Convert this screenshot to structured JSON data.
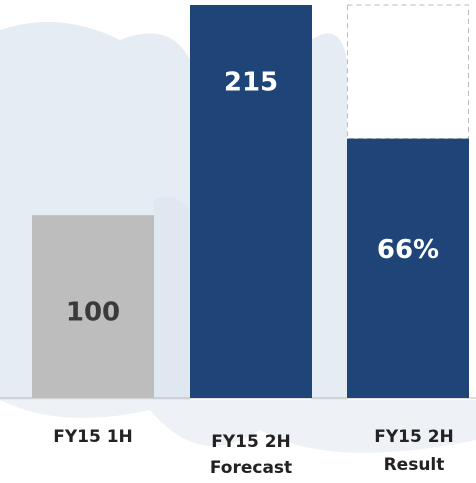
{
  "chart_data": {
    "type": "bar",
    "categories": [
      [
        "FY15 1H"
      ],
      [
        "FY15 2H",
        "Forecast"
      ],
      [
        "FY15 2H",
        "Result"
      ]
    ],
    "values": [
      100,
      215,
      66
    ],
    "value_labels": [
      "100",
      "215",
      "66%"
    ],
    "colors": [
      "#bdbdbd",
      "#1f4478",
      "#1f4478"
    ],
    "label_colors": [
      "#3a3a3a",
      "#ffffff",
      "#ffffff"
    ]
  }
}
